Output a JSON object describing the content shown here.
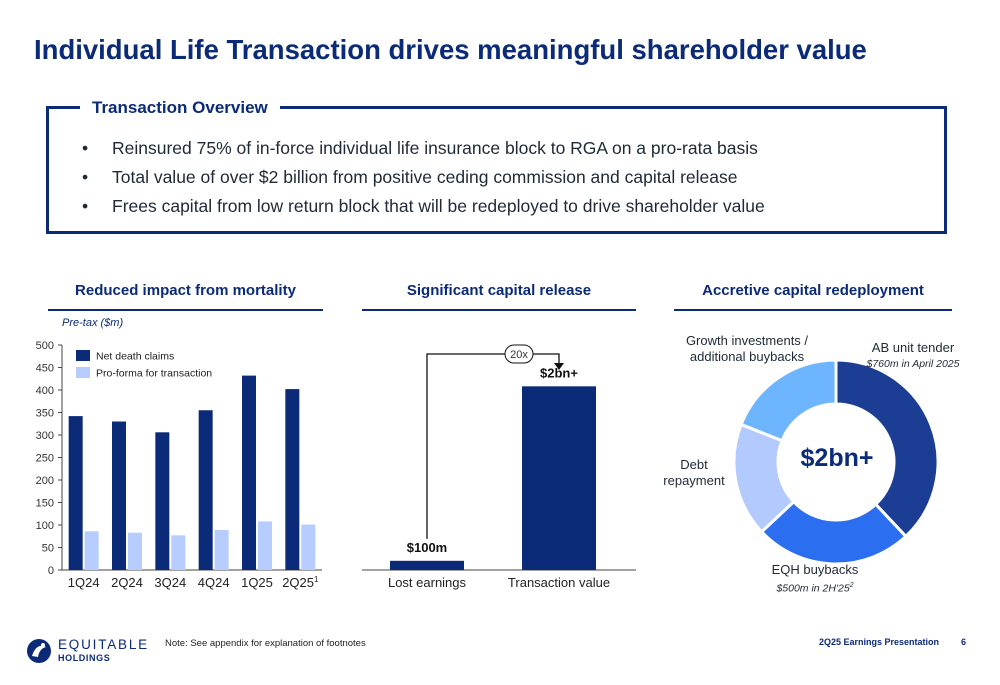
{
  "title": "Individual Life Transaction drives meaningful shareholder value",
  "overview": {
    "title": "Transaction Overview",
    "bullets": [
      "Reinsured 75% of in-force individual life insurance block to RGA on a pro-rata basis",
      "Total value of over $2 billion from positive ceding commission and capital release",
      "Frees capital from low return block that will be redeployed to drive shareholder value"
    ]
  },
  "sections": {
    "mortality": "Reduced impact from mortality",
    "capital_release": "Significant capital release",
    "redeployment": "Accretive capital redeployment"
  },
  "chart_data": [
    {
      "type": "bar",
      "ylabel": "Pre-tax ($m)",
      "categories": [
        "1Q24",
        "2Q24",
        "3Q24",
        "4Q24",
        "1Q25",
        "2Q25"
      ],
      "category_footnotes": [
        "",
        "",
        "",
        "",
        "",
        "1"
      ],
      "series": [
        {
          "name": "Net death claims",
          "values": [
            342,
            330,
            306,
            355,
            432,
            402
          ],
          "color": "#0b2a78"
        },
        {
          "name": "Pro-forma for transaction",
          "values": [
            86,
            83,
            77,
            89,
            108,
            101
          ],
          "color": "#b7ccff"
        }
      ],
      "ylim": [
        0,
        500
      ],
      "yticks": [
        0,
        50,
        100,
        150,
        200,
        250,
        300,
        350,
        400,
        450,
        500
      ],
      "legend": "top-left",
      "grid": false
    },
    {
      "type": "bar",
      "categories": [
        "Lost earnings",
        "Transaction value"
      ],
      "values": [
        100,
        2000
      ],
      "data_labels": [
        "$100m",
        "$2bn+"
      ],
      "color": "#0b2a78",
      "annotation": "20x",
      "ylim": [
        0,
        2450
      ]
    },
    {
      "type": "pie",
      "center_label": "$2bn+",
      "slices": [
        {
          "label": "AB unit tender",
          "sublabel": "$760m in April 2025",
          "value": 38,
          "color": "#1b3d93"
        },
        {
          "label": "EQH buybacks",
          "sublabel": "$500m in 2H'25",
          "sublabel_footnote": "2",
          "value": 25,
          "color": "#2b6ef0"
        },
        {
          "label": "Debt repayment",
          "value": 18,
          "color": "#b3caff"
        },
        {
          "label": "Growth investments / additional buybacks",
          "value": 19,
          "color": "#6db6ff"
        }
      ]
    }
  ],
  "footer": {
    "logo_word": "EQUITABLE",
    "logo_sub": "HOLDINGS",
    "note": "Note: See appendix for explanation of footnotes",
    "presentation": "2Q25 Earnings Presentation",
    "page": "6"
  }
}
